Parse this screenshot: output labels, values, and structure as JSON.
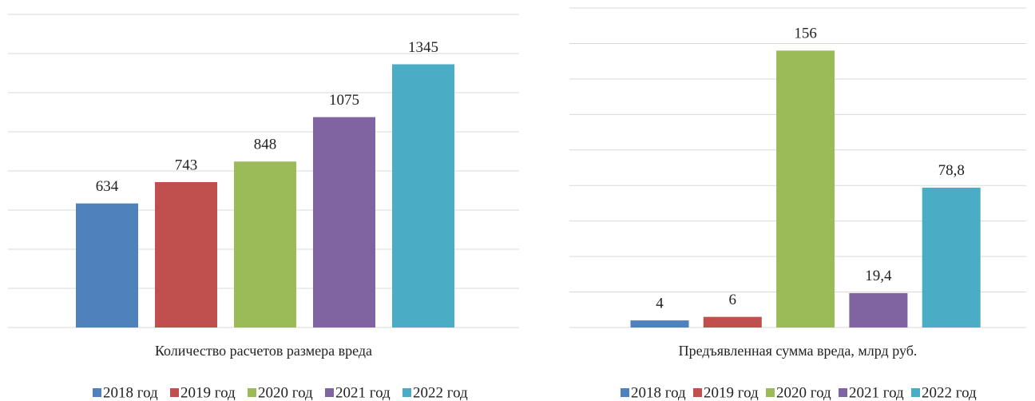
{
  "chart_data": [
    {
      "type": "bar",
      "title": "Количество расчетов размера вреда",
      "ylim": [
        0,
        1600
      ],
      "yticks": [
        0,
        200,
        400,
        600,
        800,
        1000,
        1200,
        1400,
        1600
      ],
      "grid": true,
      "legend": "bottom",
      "series": [
        {
          "name": "2018 год",
          "color": "#4f81bd",
          "values": [
            634
          ]
        },
        {
          "name": "2019 год",
          "color": "#c0504d",
          "values": [
            743
          ]
        },
        {
          "name": "2020 год",
          "color": "#9bbb59",
          "values": [
            848
          ]
        },
        {
          "name": "2021 год",
          "color": "#8064a2",
          "values": [
            1075
          ]
        },
        {
          "name": "2022 год",
          "color": "#4bacc6",
          "values": [
            1345
          ]
        }
      ]
    },
    {
      "type": "bar",
      "title": "Предъявленная сумма вреда, млрд руб.",
      "ylim": [
        0,
        180
      ],
      "yticks": [
        0,
        20,
        40,
        60,
        80,
        100,
        120,
        140,
        160,
        180
      ],
      "grid": true,
      "legend": "bottom",
      "series": [
        {
          "name": "2018 год",
          "color": "#4f81bd",
          "values": [
            4
          ]
        },
        {
          "name": "2019 год",
          "color": "#c0504d",
          "values": [
            6
          ]
        },
        {
          "name": "2020 год",
          "color": "#9bbb59",
          "values": [
            156
          ]
        },
        {
          "name": "2021 год",
          "color": "#8064a2",
          "values": [
            19.4
          ],
          "value_labels": [
            "19,4"
          ]
        },
        {
          "name": "2022 год",
          "color": "#4bacc6",
          "values": [
            78.8
          ],
          "value_labels": [
            "78,8"
          ]
        }
      ]
    }
  ]
}
